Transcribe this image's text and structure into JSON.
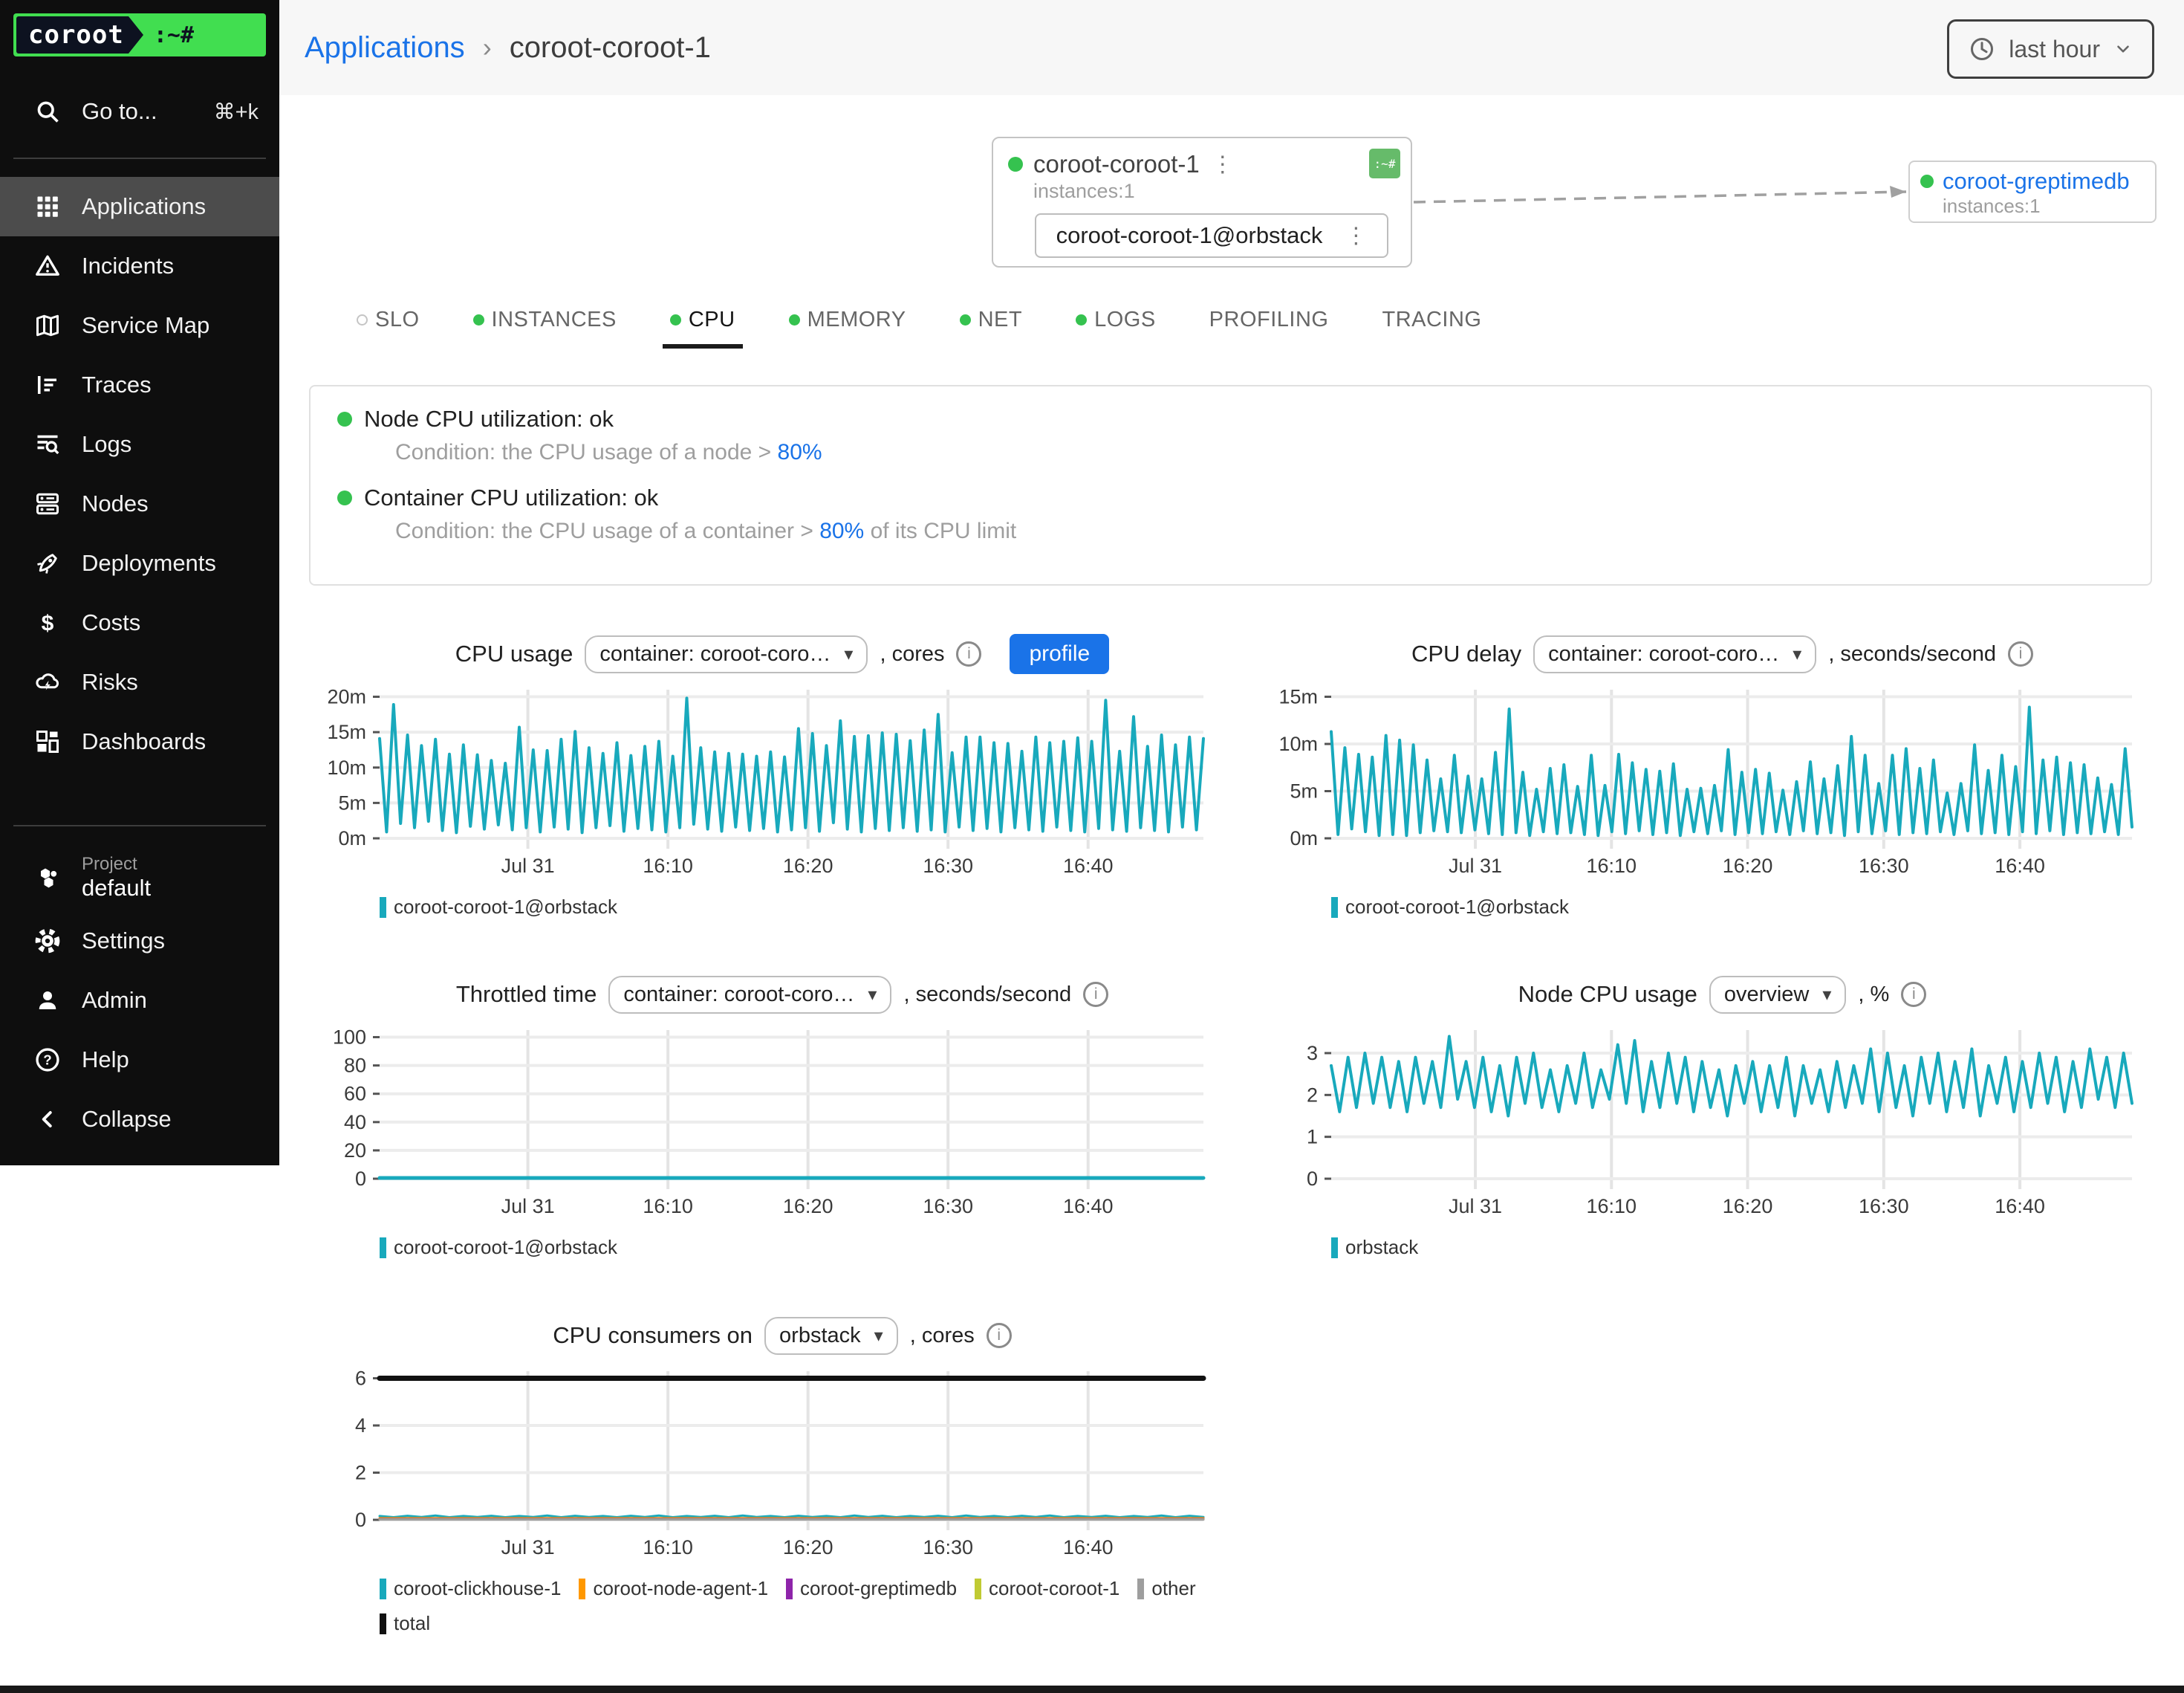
{
  "sidebar": {
    "logo_text": "coroot",
    "logo_prompt": ":~#",
    "search": {
      "label": "Go to...",
      "shortcut": "⌘+k"
    },
    "items": [
      {
        "label": "Applications",
        "icon": "grid",
        "active": true
      },
      {
        "label": "Incidents",
        "icon": "warning"
      },
      {
        "label": "Service Map",
        "icon": "map"
      },
      {
        "label": "Traces",
        "icon": "traces"
      },
      {
        "label": "Logs",
        "icon": "logs"
      },
      {
        "label": "Nodes",
        "icon": "nodes"
      },
      {
        "label": "Deployments",
        "icon": "rocket"
      },
      {
        "label": "Costs",
        "icon": "dollar"
      },
      {
        "label": "Risks",
        "icon": "cloud"
      },
      {
        "label": "Dashboards",
        "icon": "dashboards"
      }
    ],
    "project": {
      "label": "Project",
      "value": "default",
      "icon": "hexes"
    },
    "footer_items": [
      {
        "label": "Settings",
        "icon": "gear"
      },
      {
        "label": "Admin",
        "icon": "person"
      },
      {
        "label": "Help",
        "icon": "help"
      },
      {
        "label": "Collapse",
        "icon": "chevleft"
      }
    ]
  },
  "header": {
    "breadcrumb": {
      "parent": "Applications",
      "separator": "›",
      "current": "coroot-coroot-1"
    },
    "time_picker": "last hour"
  },
  "service_map": {
    "app": {
      "name": "coroot-coroot-1",
      "badge": ":~#",
      "instances_label": "instances:1",
      "instance": "coroot-coroot-1@orbstack"
    },
    "upstream": {
      "name": "coroot-greptimedb",
      "instances_label": "instances:1"
    }
  },
  "tabs": [
    {
      "label": "SLO",
      "dot": "hollow"
    },
    {
      "label": "INSTANCES",
      "dot": "green"
    },
    {
      "label": "CPU",
      "dot": "green",
      "active": true
    },
    {
      "label": "MEMORY",
      "dot": "green"
    },
    {
      "label": "NET",
      "dot": "green"
    },
    {
      "label": "LOGS",
      "dot": "green"
    },
    {
      "label": "PROFILING",
      "dot": "none"
    },
    {
      "label": "TRACING",
      "dot": "none"
    }
  ],
  "checks": [
    {
      "title": "Node CPU utilization: ok",
      "condition_prefix": "Condition: the CPU usage of a node > ",
      "threshold": "80%",
      "condition_suffix": ""
    },
    {
      "title": "Container CPU utilization: ok",
      "condition_prefix": "Condition: the CPU usage of a container > ",
      "threshold": "80%",
      "condition_suffix": " of its CPU limit"
    }
  ],
  "colors": {
    "teal": "#18a9bc",
    "green": "#35c24f",
    "blue": "#1a73e8",
    "orange": "#ff9800",
    "purple": "#8e24aa",
    "lime": "#c0ca33",
    "gray": "#9e9e9e",
    "black": "#111111",
    "logo_green": "#41de50",
    "badge_green": "#66bb6a"
  },
  "chart_data": [
    {
      "type": "line",
      "title": "CPU usage",
      "selector": "container: coroot-coro…",
      "suffix": ", cores",
      "profile_button": "profile",
      "xlabel": "",
      "ylabel": "cores (m)",
      "x_ticks": [
        {
          "f": 0.18,
          "label": "Jul 31"
        },
        {
          "f": 0.35,
          "label": "16:10"
        },
        {
          "f": 0.52,
          "label": "16:20"
        },
        {
          "f": 0.69,
          "label": "16:30"
        },
        {
          "f": 0.86,
          "label": "16:40"
        }
      ],
      "y_ticks": [
        {
          "v": 0,
          "label": "0m"
        },
        {
          "v": 5,
          "label": "5m"
        },
        {
          "v": 10,
          "label": "10m"
        },
        {
          "v": 15,
          "label": "15m"
        },
        {
          "v": 20,
          "label": "20m"
        }
      ],
      "ylim": [
        0,
        21
      ],
      "series": [
        {
          "name": "coroot-coroot-1@orbstack",
          "color": "#18a9bc",
          "width": 4,
          "values": [
            14.1,
            0.9,
            18.9,
            2.1,
            14.6,
            1.5,
            13.1,
            2.4,
            14.0,
            1.1,
            11.9,
            0.8,
            13.2,
            1.7,
            11.8,
            1.3,
            11.0,
            1.9,
            10.6,
            1.2,
            15.7,
            1.5,
            12.5,
            0.9,
            12.4,
            1.6,
            14.0,
            1.3,
            15.1,
            0.8,
            12.8,
            1.5,
            12.0,
            1.8,
            13.5,
            1.0,
            11.7,
            1.4,
            13.0,
            1.2,
            13.7,
            0.9,
            11.6,
            1.5,
            19.8,
            2.0,
            12.8,
            1.3,
            12.2,
            1.0,
            12.0,
            1.6,
            11.9,
            1.1,
            11.6,
            1.4,
            12.2,
            0.9,
            11.5,
            1.2,
            15.5,
            1.5,
            14.8,
            1.0,
            13.1,
            2.2,
            16.6,
            1.3,
            14.4,
            0.9,
            14.5,
            1.4,
            14.9,
            1.1,
            14.7,
            1.5,
            13.8,
            1.0,
            15.3,
            1.2,
            17.5,
            0.9,
            12.1,
            1.6,
            14.3,
            1.1,
            14.3,
            1.4,
            13.5,
            0.9,
            13.4,
            1.5,
            12.3,
            1.2,
            14.3,
            1.0,
            13.5,
            1.6,
            13.7,
            1.1,
            14.2,
            0.9,
            13.7,
            1.4,
            19.5,
            1.2,
            12.3,
            1.0,
            17.2,
            1.5,
            13.0,
            1.1,
            14.6,
            0.9,
            13.2,
            1.6,
            14.3,
            1.2,
            14.1
          ]
        }
      ],
      "legend": [
        {
          "label": "coroot-coroot-1@orbstack",
          "color": "#18a9bc"
        }
      ]
    },
    {
      "type": "line",
      "title": "CPU delay",
      "selector": "container: coroot-coro…",
      "suffix": ", seconds/second",
      "xlabel": "",
      "ylabel": "seconds/second (m)",
      "x_ticks": [
        {
          "f": 0.18,
          "label": "Jul 31"
        },
        {
          "f": 0.35,
          "label": "16:10"
        },
        {
          "f": 0.52,
          "label": "16:20"
        },
        {
          "f": 0.69,
          "label": "16:30"
        },
        {
          "f": 0.86,
          "label": "16:40"
        }
      ],
      "y_ticks": [
        {
          "v": 0,
          "label": "0m"
        },
        {
          "v": 5,
          "label": "5m"
        },
        {
          "v": 10,
          "label": "10m"
        },
        {
          "v": 15,
          "label": "15m"
        }
      ],
      "ylim": [
        0,
        15.75
      ],
      "series": [
        {
          "name": "coroot-coroot-1@orbstack",
          "color": "#18a9bc",
          "width": 4,
          "values": [
            11.3,
            0.4,
            9.6,
            1.0,
            8.9,
            0.7,
            8.6,
            0.3,
            10.9,
            0.4,
            10.4,
            0.3,
            9.9,
            0.6,
            8.3,
            0.8,
            6.3,
            0.7,
            8.8,
            0.6,
            6.6,
            0.9,
            6.3,
            0.5,
            9.1,
            0.4,
            13.7,
            0.6,
            7.0,
            0.3,
            5.2,
            0.7,
            7.4,
            0.5,
            7.8,
            0.6,
            5.5,
            0.4,
            8.8,
            0.3,
            5.6,
            0.7,
            8.9,
            0.5,
            8.0,
            0.8,
            7.3,
            0.4,
            7.1,
            0.6,
            7.9,
            0.3,
            5.2,
            0.7,
            5.3,
            0.5,
            5.6,
            0.8,
            9.4,
            0.4,
            7.0,
            0.6,
            7.3,
            0.5,
            6.9,
            0.7,
            5.1,
            0.4,
            6.0,
            0.8,
            8.1,
            0.5,
            6.3,
            0.6,
            7.7,
            0.3,
            10.8,
            0.7,
            8.8,
            0.5,
            5.8,
            0.8,
            8.8,
            0.4,
            9.5,
            0.6,
            7.4,
            0.5,
            8.3,
            0.7,
            4.8,
            0.4,
            5.8,
            0.8,
            9.9,
            0.5,
            7.2,
            0.6,
            8.8,
            0.4,
            7.6,
            0.7,
            13.9,
            0.5,
            8.3,
            0.8,
            8.6,
            0.4,
            8.0,
            0.6,
            7.8,
            0.5,
            6.4,
            0.7,
            5.7,
            0.4,
            9.5,
            1.2
          ]
        }
      ],
      "legend": [
        {
          "label": "coroot-coroot-1@orbstack",
          "color": "#18a9bc"
        }
      ]
    },
    {
      "type": "line",
      "title": "Throttled time",
      "selector": "container: coroot-coro…",
      "suffix": ", seconds/second",
      "xlabel": "",
      "ylabel": "seconds/second",
      "x_ticks": [
        {
          "f": 0.18,
          "label": "Jul 31"
        },
        {
          "f": 0.35,
          "label": "16:10"
        },
        {
          "f": 0.52,
          "label": "16:20"
        },
        {
          "f": 0.69,
          "label": "16:30"
        },
        {
          "f": 0.86,
          "label": "16:40"
        }
      ],
      "y_ticks": [
        {
          "v": 0,
          "label": "0"
        },
        {
          "v": 20,
          "label": "20"
        },
        {
          "v": 40,
          "label": "40"
        },
        {
          "v": 60,
          "label": "60"
        },
        {
          "v": 80,
          "label": "80"
        },
        {
          "v": 100,
          "label": "100"
        }
      ],
      "ylim": [
        0,
        105
      ],
      "series": [
        {
          "name": "coroot-coroot-1@orbstack",
          "color": "#18a9bc",
          "width": 5,
          "values": [
            0.5,
            0.5
          ]
        }
      ],
      "legend": [
        {
          "label": "coroot-coroot-1@orbstack",
          "color": "#18a9bc"
        }
      ]
    },
    {
      "type": "line",
      "title": "Node CPU usage",
      "selector": "overview",
      "suffix": ", %",
      "xlabel": "",
      "ylabel": "%",
      "x_ticks": [
        {
          "f": 0.18,
          "label": "Jul 31"
        },
        {
          "f": 0.35,
          "label": "16:10"
        },
        {
          "f": 0.52,
          "label": "16:20"
        },
        {
          "f": 0.69,
          "label": "16:30"
        },
        {
          "f": 0.86,
          "label": "16:40"
        }
      ],
      "y_ticks": [
        {
          "v": 0,
          "label": "0"
        },
        {
          "v": 1,
          "label": "1"
        },
        {
          "v": 2,
          "label": "2"
        },
        {
          "v": 3,
          "label": "3"
        }
      ],
      "ylim": [
        0,
        3.55
      ],
      "series": [
        {
          "name": "orbstack",
          "color": "#18a9bc",
          "width": 4,
          "values": [
            2.7,
            1.6,
            2.9,
            1.7,
            3.0,
            1.8,
            2.9,
            1.7,
            2.8,
            1.6,
            2.9,
            1.8,
            2.8,
            1.7,
            3.4,
            1.9,
            2.8,
            1.7,
            2.9,
            1.6,
            2.7,
            1.5,
            2.9,
            1.8,
            3.0,
            1.7,
            2.6,
            1.6,
            2.7,
            1.8,
            3.0,
            1.7,
            2.6,
            1.9,
            3.2,
            1.8,
            3.3,
            1.6,
            2.8,
            1.7,
            3.0,
            1.8,
            2.9,
            1.6,
            2.8,
            1.7,
            2.6,
            1.5,
            2.7,
            1.8,
            2.8,
            1.6,
            2.7,
            1.7,
            2.9,
            1.5,
            2.7,
            1.8,
            2.6,
            1.6,
            2.8,
            1.7,
            2.7,
            1.8,
            3.1,
            1.6,
            3.0,
            1.7,
            2.7,
            1.5,
            2.9,
            1.8,
            3.0,
            1.6,
            2.8,
            1.7,
            3.1,
            1.5,
            2.7,
            1.8,
            2.9,
            1.6,
            2.8,
            1.7,
            3.0,
            1.8,
            2.9,
            1.6,
            2.8,
            1.7,
            3.1,
            1.9,
            2.9,
            1.7,
            3.0,
            1.8
          ]
        }
      ],
      "legend": [
        {
          "label": "orbstack",
          "color": "#18a9bc"
        }
      ]
    },
    {
      "type": "line",
      "title": "CPU consumers on",
      "selector": "orbstack",
      "suffix": ", cores",
      "xlabel": "",
      "ylabel": "cores",
      "x_ticks": [
        {
          "f": 0.18,
          "label": "Jul 31"
        },
        {
          "f": 0.35,
          "label": "16:10"
        },
        {
          "f": 0.52,
          "label": "16:20"
        },
        {
          "f": 0.69,
          "label": "16:30"
        },
        {
          "f": 0.86,
          "label": "16:40"
        }
      ],
      "y_ticks": [
        {
          "v": 0,
          "label": "0"
        },
        {
          "v": 2,
          "label": "2"
        },
        {
          "v": 4,
          "label": "4"
        },
        {
          "v": 6,
          "label": "6"
        }
      ],
      "ylim": [
        0,
        6.3
      ],
      "series": [
        {
          "name": "coroot-clickhouse-1",
          "color": "#18a9bc",
          "width": 3,
          "values": [
            0.16,
            0.11,
            0.17,
            0.12,
            0.18,
            0.11,
            0.16,
            0.12,
            0.17,
            0.11,
            0.16,
            0.12,
            0.18,
            0.11,
            0.17,
            0.12,
            0.16,
            0.11,
            0.17,
            0.12,
            0.18,
            0.11,
            0.16,
            0.12,
            0.17,
            0.11,
            0.18,
            0.12,
            0.16,
            0.11,
            0.17,
            0.12,
            0.16,
            0.11,
            0.18,
            0.12,
            0.17,
            0.11,
            0.16,
            0.12,
            0.17,
            0.11,
            0.18,
            0.12,
            0.16,
            0.11,
            0.17,
            0.12,
            0.18,
            0.11,
            0.16,
            0.12,
            0.17,
            0.11,
            0.16,
            0.12,
            0.18,
            0.11,
            0.17,
            0.12
          ]
        },
        {
          "name": "coroot-node-agent-1",
          "color": "#ff9800",
          "width": 3,
          "values": [
            0.07,
            0.07
          ]
        },
        {
          "name": "coroot-greptimedb",
          "color": "#8e24aa",
          "width": 3,
          "values": [
            0.04,
            0.04
          ]
        },
        {
          "name": "coroot-coroot-1",
          "color": "#c0ca33",
          "width": 3,
          "values": [
            0.025,
            0.025
          ]
        },
        {
          "name": "other",
          "color": "#9e9e9e",
          "width": 3,
          "values": [
            0.012,
            0.012
          ]
        },
        {
          "name": "total",
          "color": "#111111",
          "width": 7,
          "values": [
            6,
            6
          ]
        }
      ],
      "legend": [
        {
          "label": "coroot-clickhouse-1",
          "color": "#18a9bc"
        },
        {
          "label": "coroot-node-agent-1",
          "color": "#ff9800"
        },
        {
          "label": "coroot-greptimedb",
          "color": "#8e24aa"
        },
        {
          "label": "coroot-coroot-1",
          "color": "#c0ca33"
        },
        {
          "label": "other",
          "color": "#9e9e9e"
        },
        {
          "label": "total",
          "color": "#111111"
        }
      ]
    }
  ]
}
